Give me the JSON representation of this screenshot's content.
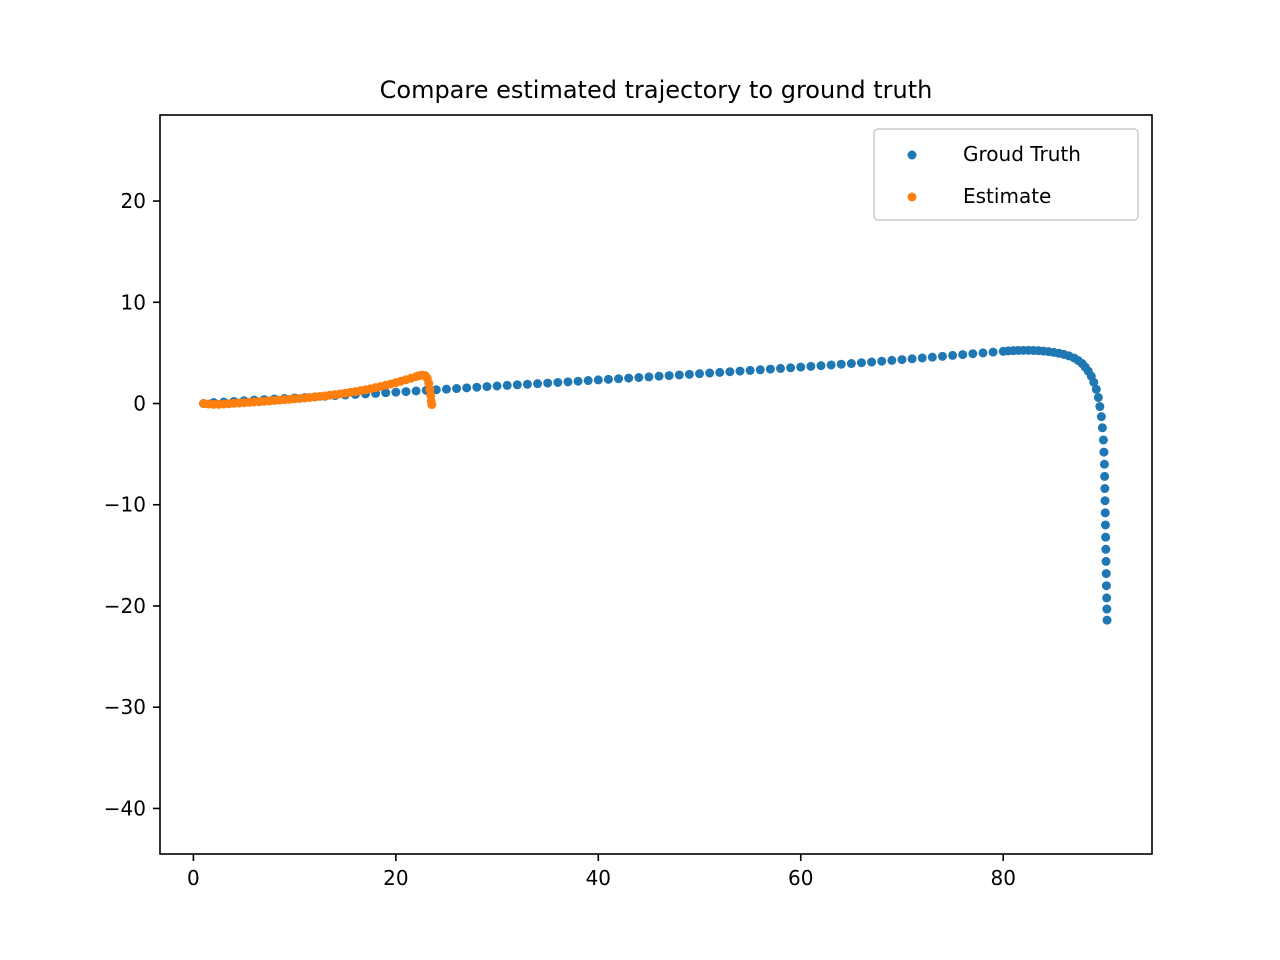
{
  "chart_data": {
    "type": "scatter",
    "title": "Compare estimated trajectory to ground truth",
    "xlabel": "",
    "ylabel": "",
    "xlim": [
      -3.3,
      94.7
    ],
    "ylim": [
      -44.5,
      28.5
    ],
    "x_ticks": [
      0,
      20,
      40,
      60,
      80
    ],
    "y_ticks": [
      -40,
      -30,
      -20,
      -10,
      0,
      10,
      20
    ],
    "x_tick_labels": [
      "0",
      "20",
      "40",
      "60",
      "80"
    ],
    "y_tick_labels": [
      "−40",
      "−30",
      "−20",
      "−10",
      "0",
      "10",
      "20"
    ],
    "grid": false,
    "legend_position": "top-right",
    "series": [
      {
        "name": "Groud Truth",
        "color": "#1f77b4",
        "points": [
          [
            1.0,
            0.0
          ],
          [
            2.0,
            0.1
          ],
          [
            3.0,
            0.15
          ],
          [
            4.0,
            0.2
          ],
          [
            5.0,
            0.27
          ],
          [
            6.0,
            0.33
          ],
          [
            7.0,
            0.38
          ],
          [
            8.0,
            0.44
          ],
          [
            9.0,
            0.5
          ],
          [
            10.0,
            0.55
          ],
          [
            11.0,
            0.6
          ],
          [
            12.0,
            0.66
          ],
          [
            13.0,
            0.72
          ],
          [
            14.0,
            0.78
          ],
          [
            15.0,
            0.84
          ],
          [
            16.0,
            0.9
          ],
          [
            17.0,
            0.95
          ],
          [
            18.0,
            1.0
          ],
          [
            19.0,
            1.07
          ],
          [
            20.0,
            1.12
          ],
          [
            21.0,
            1.18
          ],
          [
            22.0,
            1.24
          ],
          [
            23.0,
            1.3
          ],
          [
            24.0,
            1.36
          ],
          [
            25.0,
            1.42
          ],
          [
            26.0,
            1.48
          ],
          [
            27.0,
            1.55
          ],
          [
            28.0,
            1.61
          ],
          [
            29.0,
            1.67
          ],
          [
            30.0,
            1.73
          ],
          [
            31.0,
            1.79
          ],
          [
            32.0,
            1.85
          ],
          [
            33.0,
            1.9
          ],
          [
            34.0,
            1.96
          ],
          [
            35.0,
            2.02
          ],
          [
            36.0,
            2.08
          ],
          [
            37.0,
            2.14
          ],
          [
            38.0,
            2.2
          ],
          [
            39.0,
            2.27
          ],
          [
            40.0,
            2.33
          ],
          [
            41.0,
            2.39
          ],
          [
            42.0,
            2.45
          ],
          [
            43.0,
            2.51
          ],
          [
            44.0,
            2.57
          ],
          [
            45.0,
            2.63
          ],
          [
            46.0,
            2.7
          ],
          [
            47.0,
            2.76
          ],
          [
            48.0,
            2.82
          ],
          [
            49.0,
            2.88
          ],
          [
            50.0,
            2.95
          ],
          [
            51.0,
            3.01
          ],
          [
            52.0,
            3.07
          ],
          [
            53.0,
            3.14
          ],
          [
            54.0,
            3.2
          ],
          [
            55.0,
            3.27
          ],
          [
            56.0,
            3.33
          ],
          [
            57.0,
            3.4
          ],
          [
            58.0,
            3.47
          ],
          [
            59.0,
            3.53
          ],
          [
            60.0,
            3.6
          ],
          [
            61.0,
            3.67
          ],
          [
            62.0,
            3.74
          ],
          [
            63.0,
            3.81
          ],
          [
            64.0,
            3.88
          ],
          [
            65.0,
            3.95
          ],
          [
            66.0,
            4.03
          ],
          [
            67.0,
            4.1
          ],
          [
            68.0,
            4.18
          ],
          [
            69.0,
            4.26
          ],
          [
            70.0,
            4.34
          ],
          [
            71.0,
            4.42
          ],
          [
            72.0,
            4.5
          ],
          [
            73.0,
            4.58
          ],
          [
            74.0,
            4.66
          ],
          [
            75.0,
            4.75
          ],
          [
            76.0,
            4.83
          ],
          [
            77.0,
            4.92
          ],
          [
            78.0,
            5.0
          ],
          [
            79.0,
            5.08
          ],
          [
            80.0,
            5.15
          ],
          [
            80.5,
            5.2
          ],
          [
            81.0,
            5.22
          ],
          [
            81.5,
            5.24
          ],
          [
            82.0,
            5.25
          ],
          [
            82.5,
            5.25
          ],
          [
            83.0,
            5.24
          ],
          [
            83.5,
            5.22
          ],
          [
            84.0,
            5.18
          ],
          [
            84.5,
            5.12
          ],
          [
            85.0,
            5.05
          ],
          [
            85.5,
            4.96
          ],
          [
            86.0,
            4.85
          ],
          [
            86.5,
            4.7
          ],
          [
            87.0,
            4.5
          ],
          [
            87.4,
            4.25
          ],
          [
            87.8,
            3.95
          ],
          [
            88.1,
            3.6
          ],
          [
            88.4,
            3.2
          ],
          [
            88.7,
            2.7
          ],
          [
            88.95,
            2.1
          ],
          [
            89.2,
            1.4
          ],
          [
            89.4,
            0.6
          ],
          [
            89.55,
            -0.3
          ],
          [
            89.7,
            -1.3
          ],
          [
            89.8,
            -2.4
          ],
          [
            89.9,
            -3.6
          ],
          [
            89.95,
            -4.8
          ],
          [
            90.0,
            -6.0
          ],
          [
            90.02,
            -7.2
          ],
          [
            90.04,
            -8.4
          ],
          [
            90.06,
            -9.6
          ],
          [
            90.08,
            -10.8
          ],
          [
            90.1,
            -12.0
          ],
          [
            90.12,
            -13.2
          ],
          [
            90.14,
            -14.4
          ],
          [
            90.16,
            -15.6
          ],
          [
            90.18,
            -16.8
          ],
          [
            90.2,
            -18.0
          ],
          [
            90.22,
            -19.2
          ],
          [
            90.24,
            -20.3
          ],
          [
            90.26,
            -21.4
          ]
        ]
      },
      {
        "name": "Estimate",
        "color": "#ff7f0e",
        "points": [
          [
            1.0,
            0.0
          ],
          [
            1.5,
            -0.05
          ],
          [
            2.0,
            -0.08
          ],
          [
            2.5,
            -0.08
          ],
          [
            3.0,
            -0.05
          ],
          [
            3.5,
            -0.02
          ],
          [
            4.0,
            0.02
          ],
          [
            4.5,
            0.05
          ],
          [
            5.0,
            0.08
          ],
          [
            5.5,
            0.12
          ],
          [
            6.0,
            0.15
          ],
          [
            6.5,
            0.18
          ],
          [
            7.0,
            0.22
          ],
          [
            7.5,
            0.26
          ],
          [
            8.0,
            0.3
          ],
          [
            8.5,
            0.34
          ],
          [
            9.0,
            0.38
          ],
          [
            9.5,
            0.42
          ],
          [
            10.0,
            0.46
          ],
          [
            10.5,
            0.5
          ],
          [
            11.0,
            0.55
          ],
          [
            11.5,
            0.6
          ],
          [
            12.0,
            0.65
          ],
          [
            12.5,
            0.7
          ],
          [
            13.0,
            0.76
          ],
          [
            13.5,
            0.82
          ],
          [
            14.0,
            0.88
          ],
          [
            14.5,
            0.95
          ],
          [
            15.0,
            1.02
          ],
          [
            15.5,
            1.1
          ],
          [
            16.0,
            1.18
          ],
          [
            16.5,
            1.27
          ],
          [
            17.0,
            1.36
          ],
          [
            17.5,
            1.46
          ],
          [
            18.0,
            1.57
          ],
          [
            18.5,
            1.68
          ],
          [
            19.0,
            1.8
          ],
          [
            19.5,
            1.93
          ],
          [
            20.0,
            2.06
          ],
          [
            20.5,
            2.2
          ],
          [
            21.0,
            2.35
          ],
          [
            21.5,
            2.5
          ],
          [
            22.0,
            2.65
          ],
          [
            22.3,
            2.75
          ],
          [
            22.6,
            2.8
          ],
          [
            22.9,
            2.75
          ],
          [
            23.1,
            2.5
          ],
          [
            23.25,
            2.0
          ],
          [
            23.35,
            1.4
          ],
          [
            23.45,
            0.8
          ],
          [
            23.5,
            0.2
          ],
          [
            23.55,
            -0.1
          ]
        ]
      }
    ]
  }
}
